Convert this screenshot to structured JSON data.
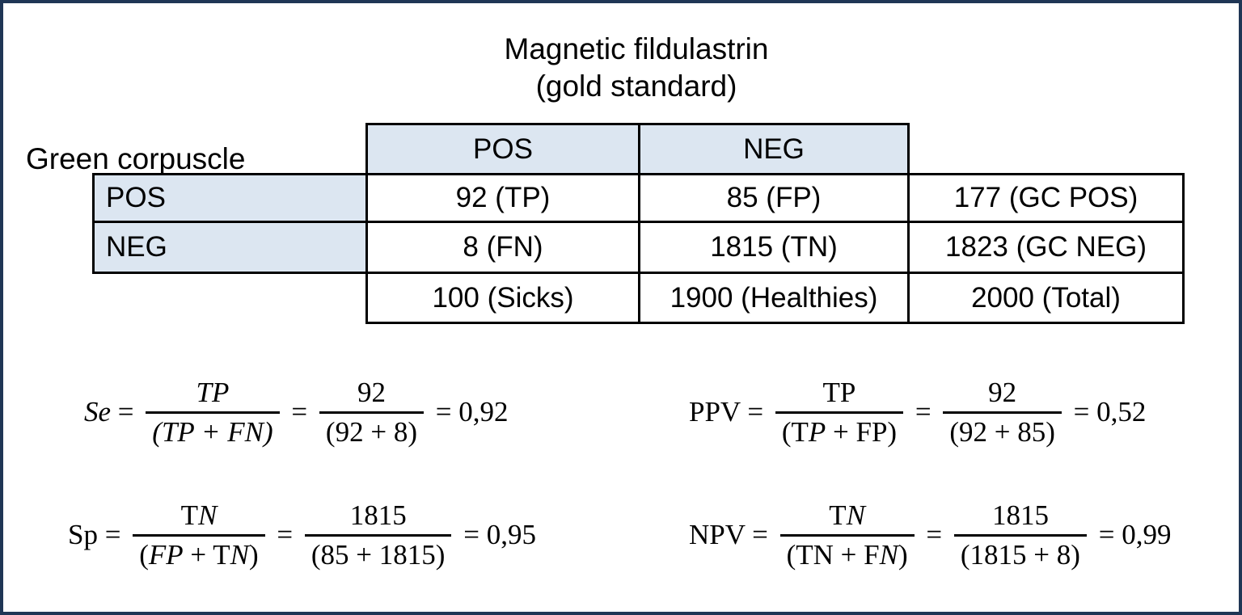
{
  "colors": {
    "frame": "#1f3655",
    "header_fill": "#dce6f1",
    "grid_line": "#000000"
  },
  "title": {
    "line1": "Magnetic fildulastrin",
    "line2": "(gold standard)"
  },
  "row_axis_label": "Green corpuscle",
  "table": {
    "column_headers": [
      "POS",
      "NEG"
    ],
    "rows": [
      {
        "header": "POS",
        "cells": [
          "92 (TP)",
          "85 (FP)",
          "177 (GC POS)"
        ]
      },
      {
        "header": "NEG",
        "cells": [
          "8 (FN)",
          "1815 (TN)",
          "1823 (GC NEG)"
        ]
      },
      {
        "header": "",
        "cells": [
          "100 (Sicks)",
          "1900 (Healthies)",
          "2000 (Total)"
        ]
      }
    ]
  },
  "formulas": [
    {
      "name": "sensitivity",
      "items": [
        {
          "type": "text",
          "segs": [
            [
              "Se",
              1
            ],
            [
              " = ",
              0
            ]
          ]
        },
        {
          "type": "frac",
          "num": [
            [
              "TP",
              1
            ]
          ],
          "den": [
            [
              "(TP + FN)",
              1
            ]
          ]
        },
        {
          "type": "text",
          "segs": [
            [
              " = ",
              0
            ]
          ]
        },
        {
          "type": "frac",
          "num": [
            [
              "92",
              0
            ]
          ],
          "den": [
            [
              "(92 + 8)",
              0
            ]
          ]
        },
        {
          "type": "text",
          "segs": [
            [
              " = 0,92",
              0
            ]
          ]
        }
      ]
    },
    {
      "name": "positive-predictive-value",
      "items": [
        {
          "type": "text",
          "segs": [
            [
              "PPV = ",
              0
            ]
          ]
        },
        {
          "type": "frac",
          "num": [
            [
              "TP",
              0
            ]
          ],
          "den": [
            [
              "(T",
              0
            ],
            [
              "P",
              1
            ],
            [
              " + FP)",
              0
            ]
          ]
        },
        {
          "type": "text",
          "segs": [
            [
              " = ",
              0
            ]
          ]
        },
        {
          "type": "frac",
          "num": [
            [
              "92",
              0
            ]
          ],
          "den": [
            [
              "(92 + 85)",
              0
            ]
          ]
        },
        {
          "type": "text",
          "segs": [
            [
              " = 0,52",
              0
            ]
          ]
        }
      ]
    },
    {
      "name": "specificity",
      "items": [
        {
          "type": "text",
          "segs": [
            [
              "Sp = ",
              0
            ]
          ]
        },
        {
          "type": "frac",
          "num": [
            [
              "T",
              0
            ],
            [
              "N",
              1
            ]
          ],
          "den": [
            [
              "(",
              0
            ],
            [
              "FP",
              1
            ],
            [
              " + T",
              0
            ],
            [
              "N",
              1
            ],
            [
              ")",
              0
            ]
          ]
        },
        {
          "type": "text",
          "segs": [
            [
              " = ",
              0
            ]
          ]
        },
        {
          "type": "frac",
          "num": [
            [
              "1815",
              0
            ]
          ],
          "den": [
            [
              "(85 + 1815)",
              0
            ]
          ]
        },
        {
          "type": "text",
          "segs": [
            [
              " = 0,95",
              0
            ]
          ]
        }
      ]
    },
    {
      "name": "negative-predictive-value",
      "items": [
        {
          "type": "text",
          "segs": [
            [
              "NPV = ",
              0
            ]
          ]
        },
        {
          "type": "frac",
          "num": [
            [
              "T",
              0
            ],
            [
              "N",
              1
            ]
          ],
          "den": [
            [
              "(TN + F",
              0
            ],
            [
              "N",
              1
            ],
            [
              ")",
              0
            ]
          ]
        },
        {
          "type": "text",
          "segs": [
            [
              " = ",
              0
            ]
          ]
        },
        {
          "type": "frac",
          "num": [
            [
              "1815",
              0
            ]
          ],
          "den": [
            [
              "(1815 + 8)",
              0
            ]
          ]
        },
        {
          "type": "text",
          "segs": [
            [
              " = 0,99",
              0
            ]
          ]
        }
      ]
    }
  ]
}
